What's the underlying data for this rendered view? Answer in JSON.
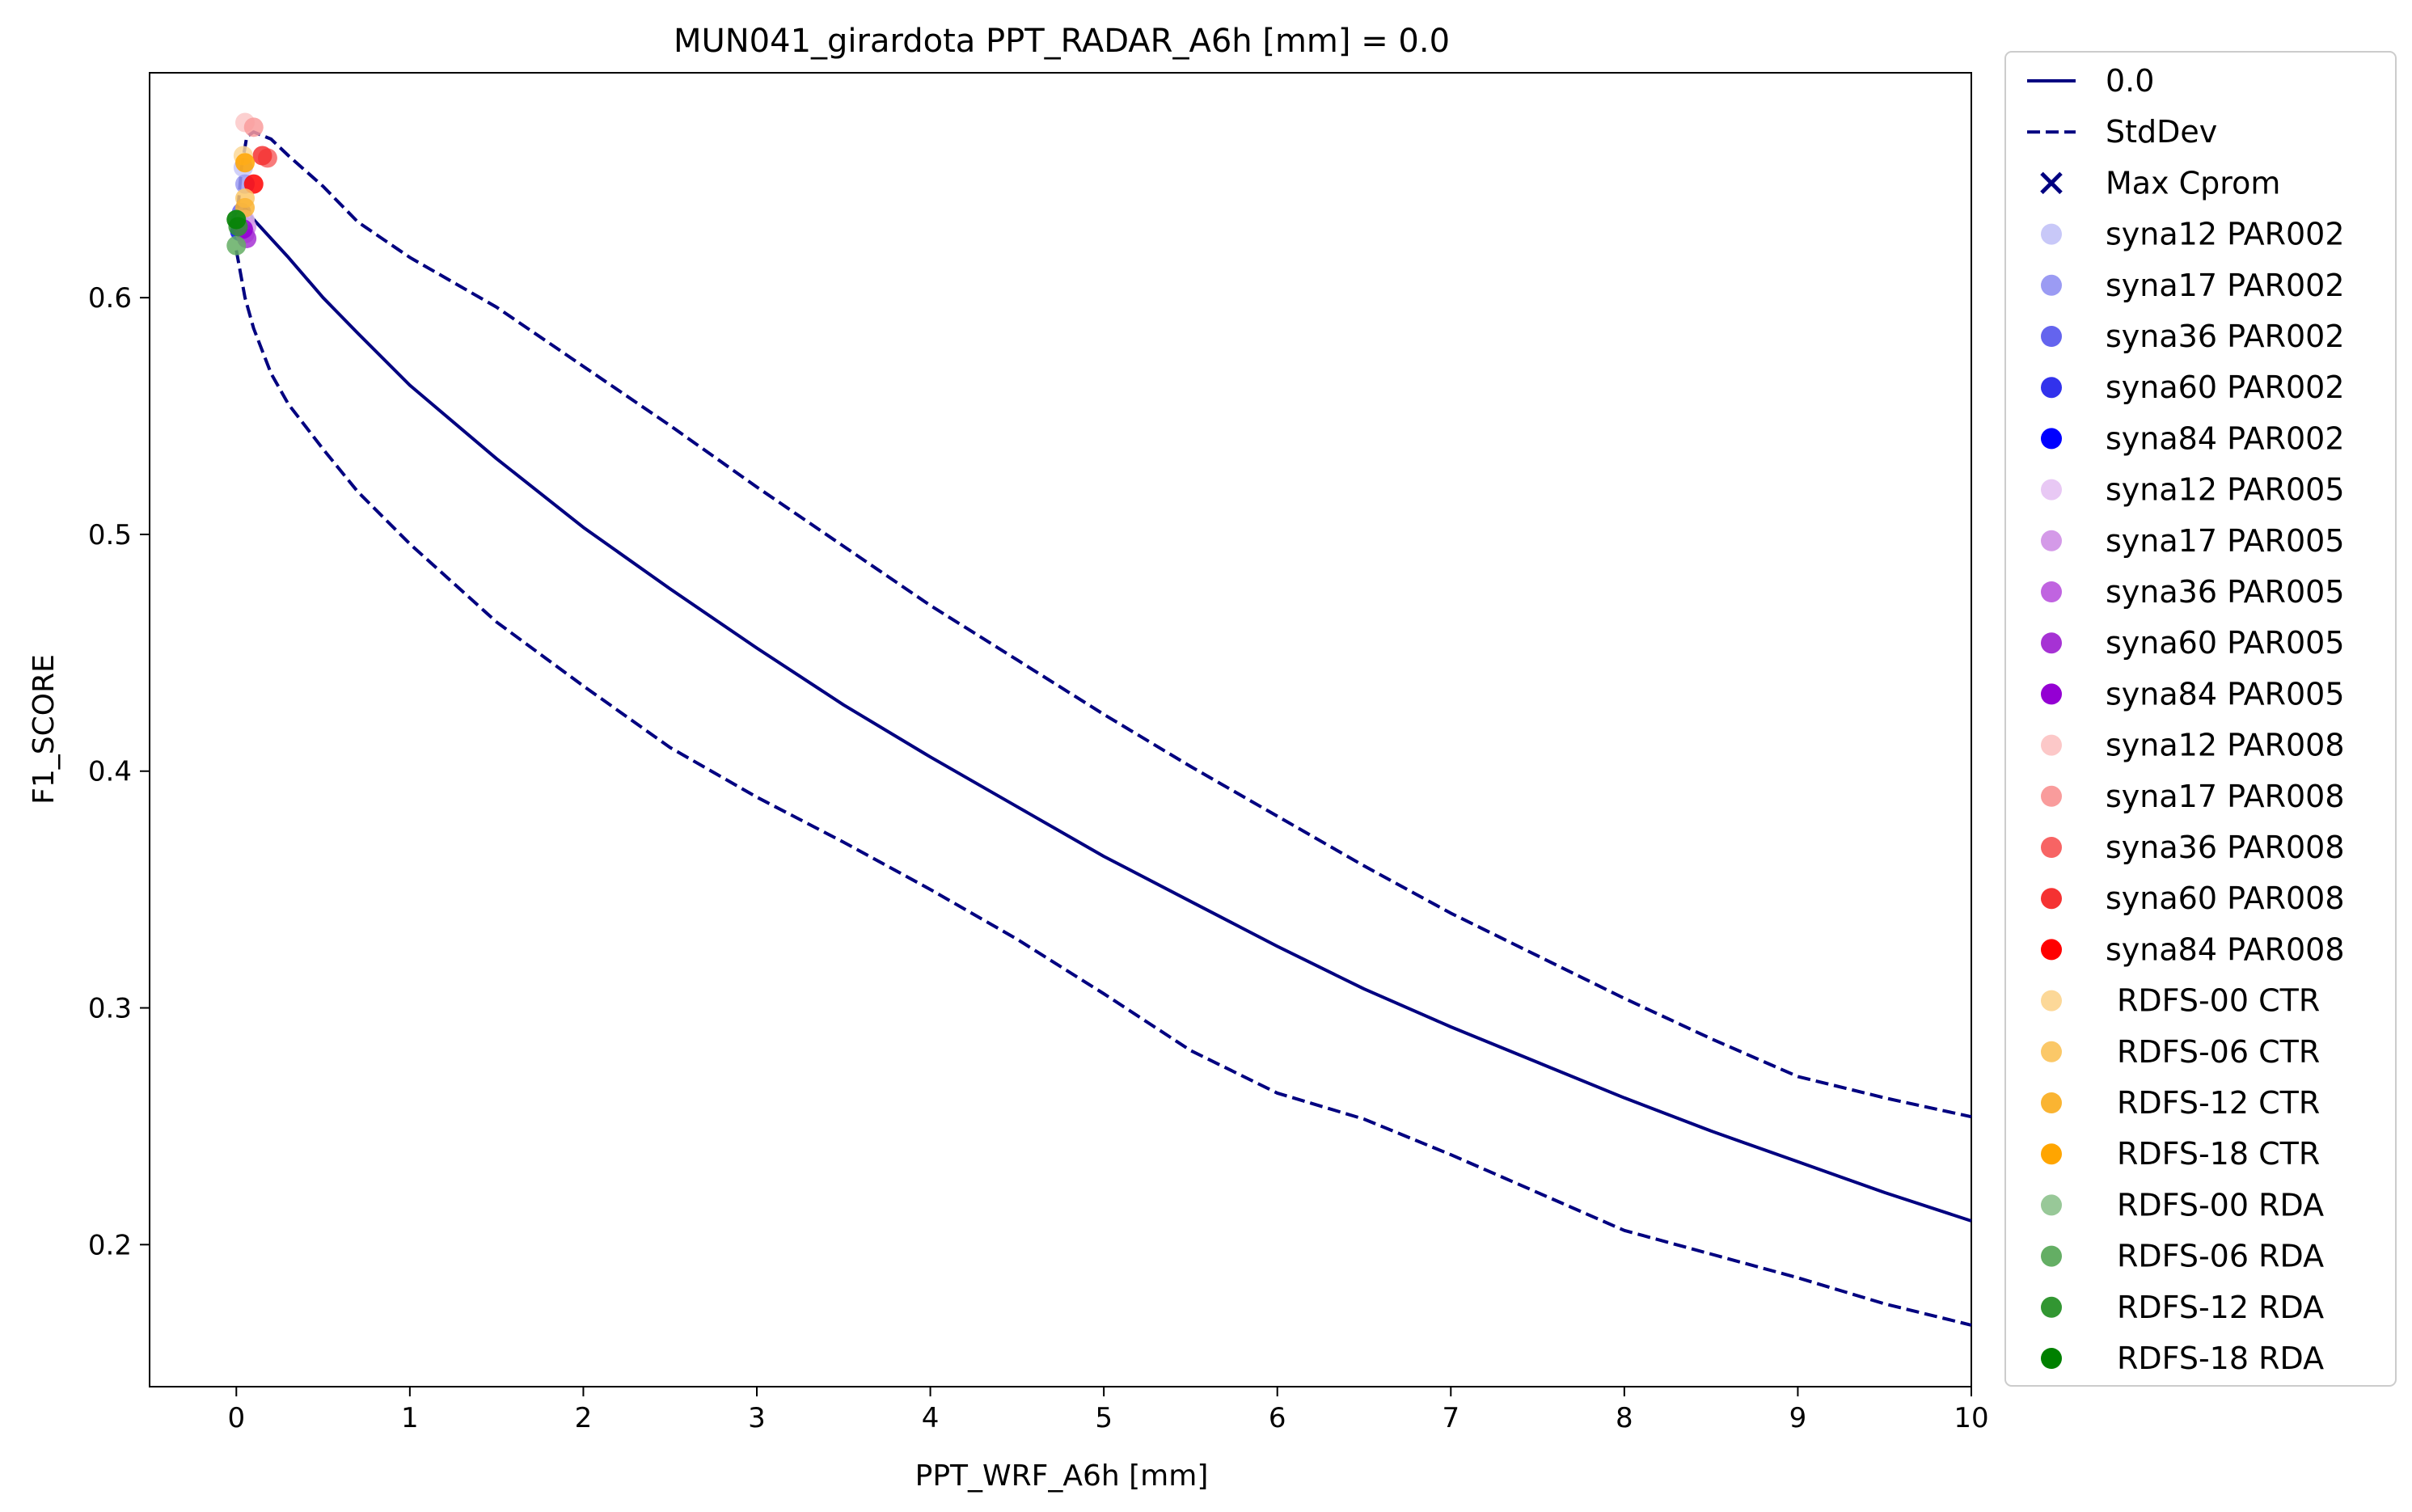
{
  "chart_data": {
    "type": "line",
    "title": "MUN041_girardota    PPT_RADAR_A6h [mm] = 0.0",
    "xlabel": "PPT_WRF_A6h [mm]",
    "ylabel": "F1_SCORE",
    "xlim": [
      -0.5,
      10
    ],
    "ylim": [
      0.14,
      0.695
    ],
    "xticks": [
      0,
      1,
      2,
      3,
      4,
      5,
      6,
      7,
      8,
      9,
      10
    ],
    "yticks": [
      0.2,
      0.3,
      0.4,
      0.5,
      0.6
    ],
    "xtick_labels": [
      "0",
      "1",
      "2",
      "3",
      "4",
      "5",
      "6",
      "7",
      "8",
      "9",
      "10"
    ],
    "ytick_labels": [
      "0.2",
      "0.3",
      "0.4",
      "0.5",
      "0.6"
    ],
    "grid": false,
    "legend_position": "outside-right",
    "lines": [
      {
        "name": "0.0",
        "style": "solid",
        "color": "#000080",
        "x": [
          0.0,
          0.05,
          0.1,
          0.2,
          0.3,
          0.5,
          0.7,
          1.0,
          1.5,
          2.0,
          2.5,
          3.0,
          3.5,
          4.0,
          4.5,
          5.0,
          5.5,
          6.0,
          6.5,
          7.0,
          7.5,
          8.0,
          8.5,
          9.0,
          9.5,
          10.0
        ],
        "y": [
          0.625,
          0.638,
          0.633,
          0.625,
          0.617,
          0.6,
          0.585,
          0.563,
          0.532,
          0.503,
          0.477,
          0.452,
          0.428,
          0.406,
          0.385,
          0.364,
          0.345,
          0.326,
          0.308,
          0.292,
          0.277,
          0.262,
          0.248,
          0.235,
          0.222,
          0.21
        ]
      },
      {
        "name": "StdDev",
        "style": "dashed",
        "color": "#000080",
        "x": [
          0.0,
          0.03,
          0.06,
          0.1,
          0.2,
          0.3,
          0.5,
          0.7,
          1.0,
          1.5,
          2.0,
          2.5,
          3.0,
          3.5,
          4.0,
          4.5,
          5.0,
          5.5,
          6.0,
          6.5,
          7.0,
          7.5,
          8.0,
          8.5,
          9.0,
          9.5,
          10.0
        ],
        "y": [
          0.63,
          0.655,
          0.668,
          0.67,
          0.667,
          0.66,
          0.647,
          0.632,
          0.617,
          0.596,
          0.571,
          0.546,
          0.52,
          0.495,
          0.47,
          0.447,
          0.424,
          0.402,
          0.381,
          0.36,
          0.34,
          0.322,
          0.304,
          0.287,
          0.271,
          0.262,
          0.254
        ]
      },
      {
        "name": "",
        "style": "dashed",
        "color": "#000080",
        "x": [
          0.0,
          0.05,
          0.1,
          0.2,
          0.3,
          0.5,
          0.7,
          1.0,
          1.5,
          2.0,
          2.5,
          3.0,
          3.5,
          4.0,
          4.5,
          5.0,
          5.5,
          6.0,
          6.5,
          7.0,
          7.5,
          8.0,
          8.5,
          9.0,
          9.5,
          10.0
        ],
        "y": [
          0.62,
          0.6,
          0.587,
          0.568,
          0.555,
          0.536,
          0.518,
          0.496,
          0.463,
          0.436,
          0.41,
          0.389,
          0.37,
          0.35,
          0.329,
          0.306,
          0.282,
          0.264,
          0.253,
          0.238,
          0.222,
          0.206,
          0.196,
          0.186,
          0.175,
          0.166
        ]
      }
    ],
    "max_cprom": {
      "name": "Max Cprom",
      "marker": "x",
      "color": "#000080"
    },
    "series": [
      {
        "name": "syna12 PAR002",
        "color": "#c8c8f8",
        "x": 0.04,
        "y": 0.655
      },
      {
        "name": "syna17 PAR002",
        "color": "#9b9bf3",
        "x": 0.05,
        "y": 0.648
      },
      {
        "name": "syna36 PAR002",
        "color": "#6464ee",
        "x": 0.03,
        "y": 0.636
      },
      {
        "name": "syna60 PAR002",
        "color": "#3232ec",
        "x": 0.02,
        "y": 0.632
      },
      {
        "name": "syna84 PAR002",
        "color": "#0000ff",
        "x": 0.02,
        "y": 0.628
      },
      {
        "name": "syna12 PAR005",
        "color": "#e8c8f4",
        "x": 0.05,
        "y": 0.633
      },
      {
        "name": "syna17 PAR005",
        "color": "#d49ae8",
        "x": 0.06,
        "y": 0.63
      },
      {
        "name": "syna36 PAR005",
        "color": "#c064e0",
        "x": 0.05,
        "y": 0.627
      },
      {
        "name": "syna60 PAR005",
        "color": "#a632d4",
        "x": 0.06,
        "y": 0.625
      },
      {
        "name": "syna84 PAR005",
        "color": "#9400d3",
        "x": 0.04,
        "y": 0.629
      },
      {
        "name": "syna12 PAR008",
        "color": "#fcc8c8",
        "x": 0.05,
        "y": 0.674
      },
      {
        "name": "syna17 PAR008",
        "color": "#f99c9c",
        "x": 0.1,
        "y": 0.672
      },
      {
        "name": "syna36 PAR008",
        "color": "#f76464",
        "x": 0.18,
        "y": 0.659
      },
      {
        "name": "syna60 PAR008",
        "color": "#f53232",
        "x": 0.15,
        "y": 0.66
      },
      {
        "name": "syna84 PAR008",
        "color": "#ff0000",
        "x": 0.1,
        "y": 0.648
      },
      {
        "name": "RDFS-00 CTR",
        "color": "#fcd898",
        "x": 0.04,
        "y": 0.66
      },
      {
        "name": "RDFS-06 CTR",
        "color": "#fbc868",
        "x": 0.05,
        "y": 0.642
      },
      {
        "name": "RDFS-12 CTR",
        "color": "#fab432",
        "x": 0.05,
        "y": 0.638
      },
      {
        "name": "RDFS-18 CTR",
        "color": "#ffa500",
        "x": 0.05,
        "y": 0.657
      },
      {
        "name": "RDFS-00 RDA",
        "color": "#98c898",
        "x": 0.0,
        "y": 0.633
      },
      {
        "name": "RDFS-06 RDA",
        "color": "#64ae64",
        "x": 0.0,
        "y": 0.622
      },
      {
        "name": "RDFS-12 RDA",
        "color": "#329632",
        "x": 0.01,
        "y": 0.63
      },
      {
        "name": "RDFS-18 RDA",
        "color": "#008000",
        "x": 0.0,
        "y": 0.633
      }
    ]
  }
}
